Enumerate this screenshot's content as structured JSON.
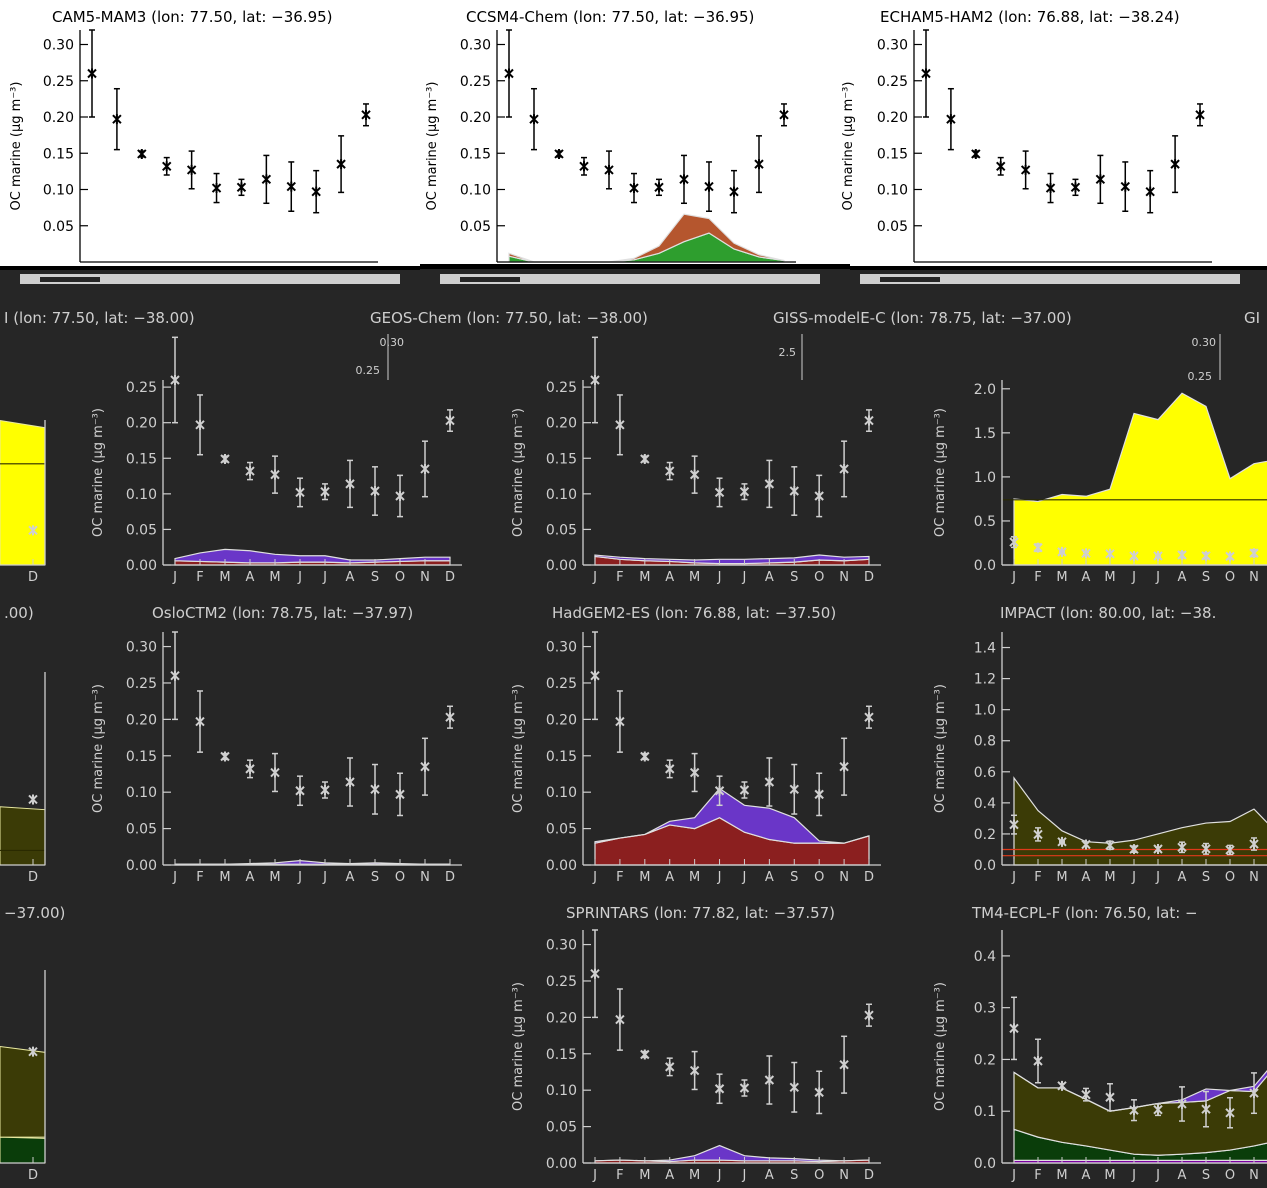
{
  "figure": {
    "background_dark": "#262626",
    "background_light": "#ffffff",
    "dark_fg": "#cfcfcf",
    "light_fg": "#000000"
  },
  "chart_data": [
    {
      "id": "cam5",
      "type": "line",
      "title": "CAM5-MAM3 (lon: 77.50, lat: −36.95)",
      "ylabel": "OC marine (µg m⁻³)",
      "ylim": [
        0.0,
        0.32
      ],
      "yticks": [
        "0.30",
        "0.25",
        "0.20",
        "0.15",
        "0.10",
        "0.05"
      ],
      "ytick_values": [
        0.3,
        0.25,
        0.2,
        0.15,
        0.1,
        0.05
      ],
      "categories": [],
      "obs": {
        "values": [
          0.26,
          0.197,
          0.149,
          0.132,
          0.127,
          0.102,
          0.103,
          0.114,
          0.104,
          0.097,
          0.135,
          0.203
        ],
        "err": [
          0.06,
          0.042,
          0.004,
          0.012,
          0.026,
          0.02,
          0.011,
          0.033,
          0.034,
          0.029,
          0.039,
          0.015
        ]
      },
      "stacks": [],
      "hlines": []
    },
    {
      "id": "ccsm4",
      "type": "area",
      "title": "CCSM4-Chem (lon: 77.50, lat: −36.95)",
      "ylabel": "OC marine (µg m⁻³)",
      "ylim": [
        0.0,
        0.32
      ],
      "yticks": [
        "0.30",
        "0.25",
        "0.20",
        "0.15",
        "0.10",
        "0.05"
      ],
      "ytick_values": [
        0.3,
        0.25,
        0.2,
        0.15,
        0.1,
        0.05
      ],
      "categories": [],
      "obs": {
        "values": [
          0.26,
          0.197,
          0.149,
          0.132,
          0.127,
          0.102,
          0.103,
          0.114,
          0.104,
          0.097,
          0.135,
          0.203
        ],
        "err": [
          0.06,
          0.042,
          0.004,
          0.012,
          0.026,
          0.02,
          0.011,
          0.033,
          0.034,
          0.029,
          0.039,
          0.015
        ]
      },
      "stacks": [
        {
          "color": "#2e9e2e",
          "values": [
            0.008,
            0.0,
            0.0,
            0.0,
            0.0,
            0.003,
            0.012,
            0.028,
            0.04,
            0.018,
            0.007,
            0.002
          ]
        },
        {
          "color": "#b5562e",
          "values": [
            0.004,
            0.0,
            0.0,
            0.0,
            0.0,
            0.002,
            0.01,
            0.038,
            0.02,
            0.008,
            0.003,
            0.0
          ]
        }
      ],
      "hlines": []
    },
    {
      "id": "echam",
      "type": "line",
      "title": "ECHAM5-HAM2 (lon: 76.88, lat: −38.24)",
      "ylabel": "OC marine (µg m⁻³)",
      "ylim": [
        0.0,
        0.32
      ],
      "yticks": [
        "0.30",
        "0.25",
        "0.20",
        "0.15",
        "0.10",
        "0.05"
      ],
      "ytick_values": [
        0.3,
        0.25,
        0.2,
        0.15,
        0.1,
        0.05
      ],
      "categories": [],
      "obs": {
        "values": [
          0.26,
          0.197,
          0.149,
          0.132,
          0.127,
          0.102,
          0.103,
          0.114,
          0.104,
          0.097,
          0.135,
          0.203
        ],
        "err": [
          0.06,
          0.042,
          0.004,
          0.012,
          0.026,
          0.02,
          0.011,
          0.033,
          0.034,
          0.029,
          0.039,
          0.015
        ]
      },
      "stacks": [],
      "hlines": []
    },
    {
      "id": "geos",
      "type": "area",
      "title": "GEOS-Chem (lon: 77.50, lat: −38.00)",
      "ylabel": "OC marine (µg m⁻³)",
      "ylim": [
        0.0,
        0.26
      ],
      "yticks": [
        "0.25",
        "0.20",
        "0.15",
        "0.10",
        "0.05",
        "0.00"
      ],
      "ytick_values": [
        0.25,
        0.2,
        0.15,
        0.1,
        0.05,
        0.0
      ],
      "categories": [
        "J",
        "F",
        "M",
        "A",
        "M",
        "J",
        "J",
        "A",
        "S",
        "O",
        "N",
        "D"
      ],
      "obs": {
        "values": [
          0.26,
          0.197,
          0.149,
          0.132,
          0.127,
          0.102,
          0.103,
          0.114,
          0.104,
          0.097,
          0.135,
          0.203
        ],
        "err": [
          0.06,
          0.042,
          0.004,
          0.012,
          0.026,
          0.02,
          0.011,
          0.033,
          0.034,
          0.029,
          0.039,
          0.015
        ]
      },
      "stacks": [
        {
          "color": "#8b1f1f",
          "values": [
            0.006,
            0.005,
            0.004,
            0.003,
            0.003,
            0.004,
            0.004,
            0.003,
            0.004,
            0.005,
            0.006,
            0.006
          ]
        },
        {
          "color": "#6a36c8",
          "values": [
            0.003,
            0.012,
            0.018,
            0.017,
            0.012,
            0.009,
            0.009,
            0.004,
            0.003,
            0.004,
            0.005,
            0.005
          ]
        }
      ],
      "hlines": []
    },
    {
      "id": "giss",
      "type": "area",
      "title": "GISS-modelE-C (lon: 78.75, lat: −37.00)",
      "ylabel": "OC marine (µg m⁻³)",
      "ylim": [
        0.0,
        0.26
      ],
      "yticks": [
        "0.25",
        "0.20",
        "0.15",
        "0.10",
        "0.05",
        "0.00"
      ],
      "ytick_values": [
        0.25,
        0.2,
        0.15,
        0.1,
        0.05,
        0.0
      ],
      "categories": [
        "J",
        "F",
        "M",
        "A",
        "M",
        "J",
        "J",
        "A",
        "S",
        "O",
        "N",
        "D"
      ],
      "obs": {
        "values": [
          0.26,
          0.197,
          0.149,
          0.132,
          0.127,
          0.102,
          0.103,
          0.114,
          0.104,
          0.097,
          0.135,
          0.203
        ],
        "err": [
          0.06,
          0.042,
          0.004,
          0.012,
          0.026,
          0.02,
          0.011,
          0.033,
          0.034,
          0.029,
          0.039,
          0.015
        ]
      },
      "stacks": [
        {
          "color": "#8b1f1f",
          "values": [
            0.012,
            0.008,
            0.006,
            0.005,
            0.003,
            0.002,
            0.002,
            0.003,
            0.004,
            0.007,
            0.006,
            0.008
          ]
        },
        {
          "color": "#6a36c8",
          "values": [
            0.002,
            0.003,
            0.003,
            0.003,
            0.004,
            0.006,
            0.006,
            0.006,
            0.006,
            0.007,
            0.005,
            0.004
          ]
        }
      ],
      "hlines": []
    },
    {
      "id": "gmi",
      "type": "area",
      "title": "",
      "ylabel": "OC marine (µg m⁻³)",
      "ylim": [
        0.0,
        2.1
      ],
      "yticks": [
        "2.0",
        "1.5",
        "1.0",
        "0.5",
        "0.0"
      ],
      "ytick_values": [
        2.0,
        1.5,
        1.0,
        0.5,
        0.0
      ],
      "categories": [
        "J",
        "F",
        "M",
        "A",
        "M",
        "J",
        "J",
        "A",
        "S",
        "O",
        "N",
        "D"
      ],
      "obs": {
        "values": [
          0.26,
          0.197,
          0.149,
          0.132,
          0.127,
          0.102,
          0.103,
          0.114,
          0.104,
          0.097,
          0.135,
          0.203
        ],
        "err": [
          0.06,
          0.042,
          0.004,
          0.012,
          0.026,
          0.02,
          0.011,
          0.033,
          0.034,
          0.029,
          0.039,
          0.015
        ]
      },
      "stacks": [
        {
          "color": "#ffff00",
          "values": [
            0.75,
            0.72,
            0.8,
            0.78,
            0.86,
            1.72,
            1.65,
            1.95,
            1.8,
            0.98,
            1.15,
            1.2
          ]
        }
      ],
      "hlines": [
        0.74
      ]
    },
    {
      "id": "oslo",
      "type": "area",
      "title": "OsloCTM2 (lon: 78.75, lat: −37.97)",
      "ylabel": "OC marine (µg m⁻³)",
      "ylim": [
        0.0,
        0.32
      ],
      "yticks": [
        "0.30",
        "0.25",
        "0.20",
        "0.15",
        "0.10",
        "0.05",
        "0.00"
      ],
      "ytick_values": [
        0.3,
        0.25,
        0.2,
        0.15,
        0.1,
        0.05,
        0.0
      ],
      "categories": [
        "J",
        "F",
        "M",
        "A",
        "M",
        "J",
        "J",
        "A",
        "S",
        "O",
        "N",
        "D"
      ],
      "obs": {
        "values": [
          0.26,
          0.197,
          0.149,
          0.132,
          0.127,
          0.102,
          0.103,
          0.114,
          0.104,
          0.097,
          0.135,
          0.203
        ],
        "err": [
          0.06,
          0.042,
          0.004,
          0.012,
          0.026,
          0.02,
          0.011,
          0.033,
          0.034,
          0.029,
          0.039,
          0.015
        ]
      },
      "stacks": [
        {
          "color": "#8b1f1f",
          "values": [
            0.001,
            0.001,
            0.001,
            0.001,
            0.001,
            0.001,
            0.001,
            0.001,
            0.001,
            0.001,
            0.001,
            0.001
          ]
        },
        {
          "color": "#6a36c8",
          "values": [
            0.0,
            0.0,
            0.0,
            0.001,
            0.002,
            0.005,
            0.002,
            0.001,
            0.002,
            0.001,
            0.0,
            0.0
          ]
        }
      ],
      "hlines": []
    },
    {
      "id": "hadgem",
      "type": "area",
      "title": "HadGEM2-ES (lon: 76.88, lat: −37.50)",
      "ylabel": "OC marine (µg m⁻³)",
      "ylim": [
        0.0,
        0.32
      ],
      "yticks": [
        "0.30",
        "0.25",
        "0.20",
        "0.15",
        "0.10",
        "0.05",
        "0.00"
      ],
      "ytick_values": [
        0.3,
        0.25,
        0.2,
        0.15,
        0.1,
        0.05,
        0.0
      ],
      "categories": [
        "J",
        "F",
        "M",
        "A",
        "M",
        "J",
        "J",
        "A",
        "S",
        "O",
        "N",
        "D"
      ],
      "obs": {
        "values": [
          0.26,
          0.197,
          0.149,
          0.132,
          0.127,
          0.102,
          0.103,
          0.114,
          0.104,
          0.097,
          0.135,
          0.203
        ],
        "err": [
          0.06,
          0.042,
          0.004,
          0.012,
          0.026,
          0.02,
          0.011,
          0.033,
          0.034,
          0.029,
          0.039,
          0.015
        ]
      },
      "stacks": [
        {
          "color": "#8b1f1f",
          "values": [
            0.03,
            0.037,
            0.042,
            0.055,
            0.05,
            0.065,
            0.045,
            0.035,
            0.03,
            0.03,
            0.03,
            0.04
          ]
        },
        {
          "color": "#6a36c8",
          "values": [
            0.002,
            0.0,
            0.0,
            0.005,
            0.015,
            0.04,
            0.037,
            0.043,
            0.035,
            0.003,
            0.0,
            0.0
          ]
        }
      ],
      "hlines": []
    },
    {
      "id": "impact",
      "type": "area",
      "title": "IMPACT (lon: 80.00, lat: −38.",
      "ylabel": "OC marine (µg m⁻³)",
      "ylim": [
        0.0,
        1.5
      ],
      "yticks": [
        "1.4",
        "1.2",
        "1.0",
        "0.8",
        "0.6",
        "0.4",
        "0.2",
        "0.0"
      ],
      "ytick_values": [
        1.4,
        1.2,
        1.0,
        0.8,
        0.6,
        0.4,
        0.2,
        0.0
      ],
      "categories": [
        "J",
        "F",
        "M",
        "A",
        "M",
        "J",
        "J",
        "A",
        "S",
        "O",
        "N",
        "D"
      ],
      "obs": {
        "values": [
          0.26,
          0.197,
          0.149,
          0.132,
          0.127,
          0.102,
          0.103,
          0.114,
          0.104,
          0.097,
          0.135,
          0.203
        ],
        "err": [
          0.06,
          0.042,
          0.004,
          0.012,
          0.026,
          0.02,
          0.011,
          0.033,
          0.034,
          0.029,
          0.039,
          0.015
        ]
      },
      "stacks": [
        {
          "color": "#3b3b06",
          "values": [
            0.56,
            0.35,
            0.22,
            0.15,
            0.14,
            0.16,
            0.2,
            0.24,
            0.27,
            0.28,
            0.36,
            0.2
          ]
        }
      ],
      "hlines": [
        0.1,
        0.06
      ]
    },
    {
      "id": "sprintars",
      "type": "area",
      "title": "SPRINTARS (lon: 77.82, lat: −37.57)",
      "ylabel": "OC marine (µg m⁻³)",
      "ylim": [
        0.0,
        0.32
      ],
      "yticks": [
        "0.30",
        "0.25",
        "0.20",
        "0.15",
        "0.10",
        "0.05",
        "0.00"
      ],
      "ytick_values": [
        0.3,
        0.25,
        0.2,
        0.15,
        0.1,
        0.05,
        0.0
      ],
      "categories": [
        "J",
        "F",
        "M",
        "A",
        "M",
        "J",
        "J",
        "A",
        "S",
        "O",
        "N",
        "D"
      ],
      "obs": {
        "values": [
          0.26,
          0.197,
          0.149,
          0.132,
          0.127,
          0.102,
          0.103,
          0.114,
          0.104,
          0.097,
          0.135,
          0.203
        ],
        "err": [
          0.06,
          0.042,
          0.004,
          0.012,
          0.026,
          0.02,
          0.011,
          0.033,
          0.034,
          0.029,
          0.039,
          0.015
        ]
      },
      "stacks": [
        {
          "color": "#8b1f1f",
          "values": [
            0.003,
            0.004,
            0.003,
            0.002,
            0.004,
            0.004,
            0.003,
            0.003,
            0.003,
            0.002,
            0.003,
            0.004
          ]
        },
        {
          "color": "#6a36c8",
          "values": [
            0.0,
            0.0,
            0.0,
            0.002,
            0.006,
            0.02,
            0.007,
            0.004,
            0.003,
            0.002,
            0.0,
            0.0
          ]
        }
      ],
      "hlines": []
    },
    {
      "id": "tm4",
      "type": "area",
      "title": "TM4-ECPL-F (lon: 76.50, lat: −",
      "ylabel": "OC marine (µg m⁻³)",
      "ylim": [
        0.0,
        0.45
      ],
      "yticks": [
        "0.4",
        "0.3",
        "0.2",
        "0.1",
        "0.0"
      ],
      "ytick_values": [
        0.4,
        0.3,
        0.2,
        0.1,
        0.0
      ],
      "categories": [
        "J",
        "F",
        "M",
        "A",
        "M",
        "J",
        "J",
        "A",
        "S",
        "O",
        "N",
        "D"
      ],
      "obs": {
        "values": [
          0.26,
          0.197,
          0.149,
          0.132,
          0.127,
          0.102,
          0.103,
          0.114,
          0.104,
          0.097,
          0.135,
          0.203
        ],
        "err": [
          0.06,
          0.042,
          0.004,
          0.012,
          0.026,
          0.02,
          0.011,
          0.033,
          0.034,
          0.029,
          0.039,
          0.015
        ]
      },
      "stacks": [
        {
          "color": "#7a00a0",
          "values": [
            0.005,
            0.005,
            0.005,
            0.005,
            0.005,
            0.005,
            0.005,
            0.005,
            0.005,
            0.005,
            0.005,
            0.005
          ]
        },
        {
          "color": "#0a3d0a",
          "values": [
            0.06,
            0.045,
            0.035,
            0.028,
            0.02,
            0.012,
            0.01,
            0.012,
            0.015,
            0.02,
            0.028,
            0.038
          ]
        },
        {
          "color": "#3b3b06",
          "values": [
            0.11,
            0.095,
            0.105,
            0.09,
            0.075,
            0.09,
            0.1,
            0.1,
            0.1,
            0.115,
            0.105,
            0.15
          ]
        },
        {
          "color": "#6a36c8",
          "values": [
            0.0,
            0.0,
            0.0,
            0.0,
            0.0,
            0.0,
            0.0,
            0.005,
            0.023,
            0.0,
            0.01,
            0.01
          ]
        }
      ],
      "hlines": []
    },
    {
      "id": "left-row2",
      "type": "area",
      "title": "",
      "ylabel": "",
      "ylim": [
        0.0,
        0.32
      ],
      "yticks": [],
      "ytick_values": [],
      "categories": [
        "D"
      ],
      "obs": {
        "values": [
          0.06
        ],
        "err": [
          0.0
        ]
      },
      "stacks": [
        {
          "color": "#ffff00",
          "values": [
            0.25
          ]
        }
      ],
      "hlines": [
        0.175
      ]
    },
    {
      "id": "left-row3",
      "type": "area",
      "title": "",
      "ylabel": "",
      "ylim": [
        0.0,
        0.32
      ],
      "yticks": [],
      "ytick_values": [],
      "categories": [
        "D"
      ],
      "obs": {
        "values": [
          0.09
        ],
        "err": [
          0.0
        ]
      },
      "stacks": [
        {
          "color": "#3b3b06",
          "values": [
            0.08
          ]
        }
      ],
      "hlines": [
        0.02
      ]
    },
    {
      "id": "left-row4",
      "type": "area",
      "title": "",
      "ylabel": "",
      "ylim": [
        0.0,
        0.45
      ],
      "yticks": [],
      "ytick_values": [],
      "categories": [
        "D"
      ],
      "obs": {
        "values": [
          0.215
        ],
        "err": [
          0.0
        ]
      },
      "stacks": [
        {
          "color": "#0a3d0a",
          "values": [
            0.05
          ]
        },
        {
          "color": "#3b3b06",
          "values": [
            0.175
          ]
        }
      ],
      "hlines": []
    }
  ],
  "fragments": {
    "row2_t1": "I (lon: 77.50, lat: −38.00)",
    "row3_t1": ".00)",
    "row4_t1": "−37.00)",
    "row2_t4": "GI",
    "g_geos_tick": "0.30",
    "g_geos_tick2": "0.25",
    "g_giss_tick": "2.5",
    "g_gmi_tick": "0.30",
    "g_gmi_tick2": "0.25"
  }
}
